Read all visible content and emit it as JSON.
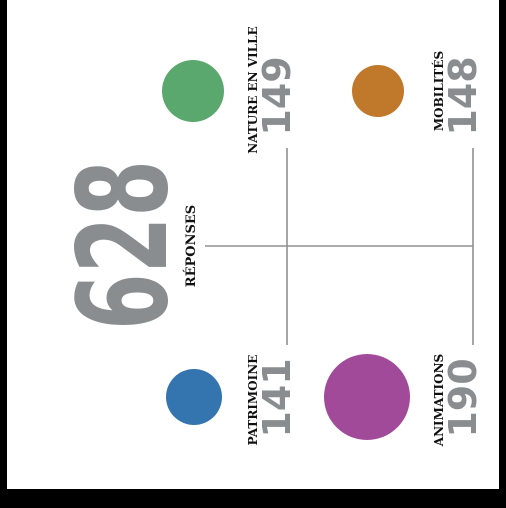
{
  "total": {
    "value": "628",
    "label": "RÉPONSES"
  },
  "categories": [
    {
      "id": "nature",
      "name": "NATURE EN VILLE",
      "count": "149",
      "color": "#5aa86e"
    },
    {
      "id": "mobilites",
      "name": "MOBILITÉS",
      "count": "148",
      "color": "#c0782a"
    },
    {
      "id": "patrimoine",
      "name": "PATRIMOINE",
      "count": "141",
      "color": "#3475b0"
    },
    {
      "id": "animations",
      "name": "ANIMATIONS",
      "count": "190",
      "color": "#a24a9a"
    }
  ],
  "line_color": "#8f8f8f"
}
